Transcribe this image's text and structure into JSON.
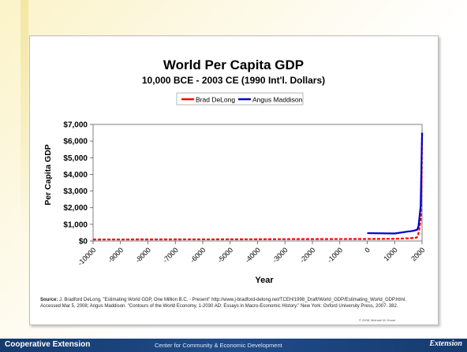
{
  "chart_data": {
    "type": "line",
    "title": "World Per Capita GDP",
    "subtitle": "10,000 BCE - 2003 CE (1990 Int'l. Dollars)",
    "xlabel": "Year",
    "ylabel": "Per Capita GDP",
    "xlim": [
      -10000,
      2000
    ],
    "ylim": [
      0,
      7000
    ],
    "x_ticks": [
      -10000,
      -9000,
      -8000,
      -7000,
      -6000,
      -5000,
      -4000,
      -3000,
      -2000,
      -1000,
      0,
      1000,
      2000
    ],
    "x_tick_labels": [
      "-10000",
      "-9000",
      "-8000",
      "-7000",
      "-6000",
      "-5000",
      "-4000",
      "-3000",
      "-2000",
      "-1000",
      "0",
      "1000",
      "2000"
    ],
    "y_ticks": [
      0,
      1000,
      2000,
      3000,
      4000,
      5000,
      6000,
      7000
    ],
    "y_tick_labels": [
      "$0",
      "$1,000",
      "$2,000",
      "$3,000",
      "$4,000",
      "$5,000",
      "$6,000",
      "$7,000"
    ],
    "legend_position": "top-center",
    "grid": false,
    "series": [
      {
        "name": "Brad DeLong",
        "color": "#ff0000",
        "x": [
          -10000,
          -5000,
          -3000,
          -1000,
          0,
          1000,
          1500,
          1700,
          1800,
          1850,
          1900,
          1950,
          1975,
          1990,
          2000
        ],
        "y": [
          90,
          100,
          110,
          115,
          120,
          130,
          160,
          180,
          200,
          300,
          700,
          1250,
          2600,
          4300,
          6500
        ]
      },
      {
        "name": "Angus Maddison",
        "color": "#0000cc",
        "x": [
          0,
          1000,
          1500,
          1600,
          1700,
          1820,
          1870,
          1913,
          1950,
          1973,
          2003
        ],
        "y": [
          470,
          450,
          570,
          590,
          620,
          670,
          870,
          1520,
          2110,
          4090,
          6500
        ]
      }
    ]
  },
  "source_note": {
    "label": "Source:",
    "text": " J. Bradford DeLong, \"Estimating World GDP, One Million B.C. - Present\" http://www.j-bradford-delong.net/TCEH/1998_Draft/World_GDP/Estimating_World_GDP.html. Accessed Mar 5, 2008; Angus Maddison. \"Contours of the World Economy, 1-2030 AD: Essays in Macro-Economic History.\" New York: Oxford University Press, 2007. 382."
  },
  "copyright": "© 2008, Michael W. Kruse",
  "footer": {
    "left": "Cooperative Extension",
    "center": "Center for Community & Economic Development",
    "right": "Extension"
  }
}
